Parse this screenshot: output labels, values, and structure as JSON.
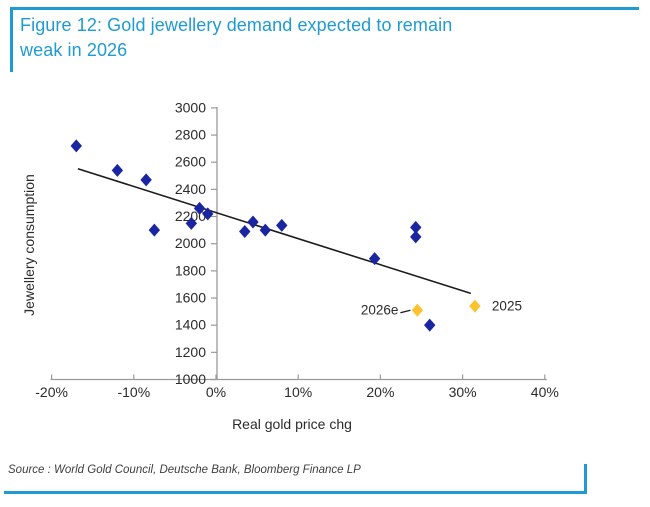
{
  "header": {
    "title_line1": "Figure 12: Gold jewellery demand expected to remain",
    "title_line2": "weak in 2026",
    "accent_color": "#1d9bd2"
  },
  "footer": {
    "source": "Source : World Gold Council, Deutsche Bank, Bloomberg Finance LP"
  },
  "chart_data": {
    "type": "scatter",
    "title": "Figure 12: Gold jewellery demand expected to remain weak in 2026",
    "xlabel": "Real gold price chg",
    "ylabel": "Jewellery consumption",
    "xlim": [
      -20,
      40
    ],
    "ylim": [
      1000,
      3000
    ],
    "grid": false,
    "legend": "none",
    "x_ticks": [
      {
        "v": -20,
        "label": "-20%"
      },
      {
        "v": -10,
        "label": "-10%"
      },
      {
        "v": 0,
        "label": "0%"
      },
      {
        "v": 10,
        "label": "10%"
      },
      {
        "v": 20,
        "label": "20%"
      },
      {
        "v": 30,
        "label": "30%"
      },
      {
        "v": 40,
        "label": "40%"
      }
    ],
    "y_ticks": [
      1000,
      1200,
      1400,
      1600,
      1800,
      2000,
      2200,
      2400,
      2600,
      2800,
      3000
    ],
    "series": [
      {
        "name": "historical-years",
        "marker": "diamond",
        "color": "#1a25a1",
        "points": [
          [
            -17,
            2720
          ],
          [
            -12,
            2540
          ],
          [
            -8.5,
            2470
          ],
          [
            -7.5,
            2100
          ],
          [
            -3,
            2150
          ],
          [
            -2,
            2260
          ],
          [
            -1,
            2220
          ],
          [
            3.5,
            2090
          ],
          [
            4.5,
            2160
          ],
          [
            6,
            2100
          ],
          [
            8,
            2135
          ],
          [
            19.3,
            1890
          ],
          [
            24.3,
            2120
          ],
          [
            24.3,
            2050
          ],
          [
            26,
            1400
          ]
        ]
      },
      {
        "name": "highlighted-years",
        "marker": "diamond",
        "color": "#fdc22d",
        "points": [
          [
            24.5,
            1510
          ],
          [
            31.5,
            1540
          ]
        ]
      }
    ],
    "trendline": {
      "x1": -16.8,
      "y1": 2552,
      "x2": 31,
      "y2": 1634
    },
    "annotations": [
      {
        "text": "2026e",
        "x": 24.5,
        "y": 1510,
        "side": "left",
        "callout": true
      },
      {
        "text": "2025",
        "x": 31.5,
        "y": 1540,
        "side": "right",
        "callout": false
      }
    ],
    "colors": {
      "text": "#2b2b2b",
      "axis": "#9a9a9a",
      "trend": "#1c1c1c",
      "blue_marker": "#1a25a1",
      "gold_marker": "#fdc22d"
    }
  }
}
